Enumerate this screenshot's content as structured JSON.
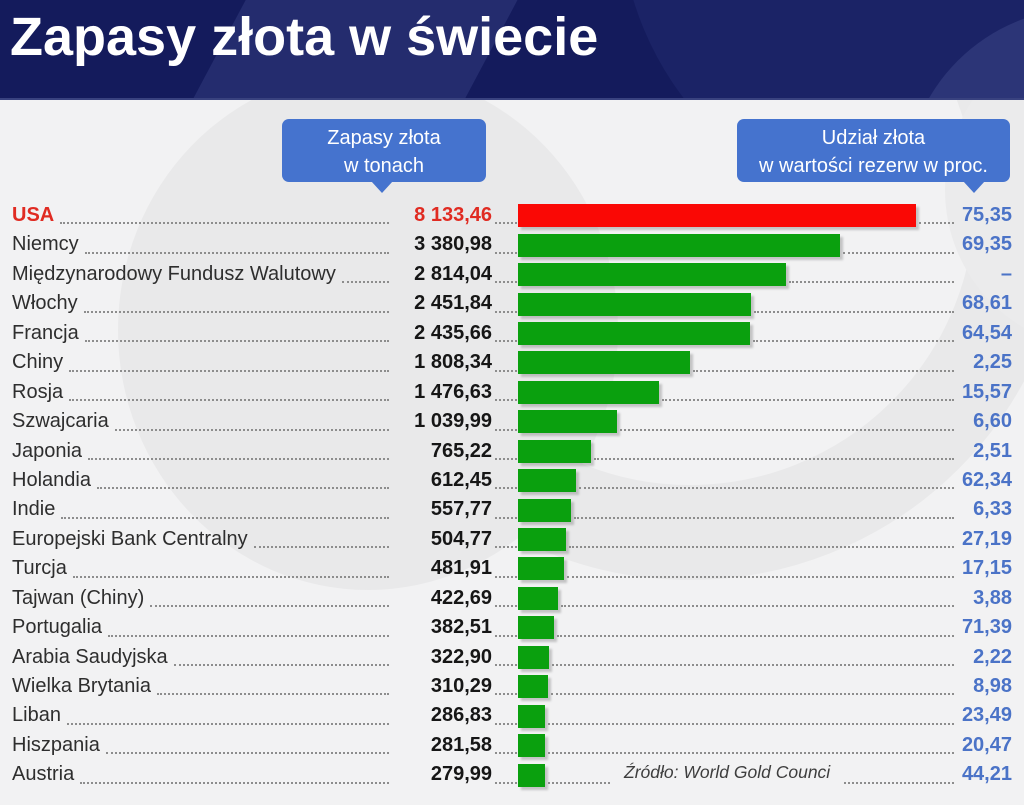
{
  "title": "Zapasy złota w świecie",
  "callouts": {
    "left_line1": "Zapasy złota",
    "left_line2": "w tonach",
    "right_line1": "Udział złota",
    "right_line2": "w wartości rezerw w proc."
  },
  "source": "Źródło: World Gold Counci",
  "colors": {
    "header_navy": "#141b5c",
    "body_bg": "#f2f2f3",
    "callout_blue": "#4573ce",
    "bar_green": "#0aa00e",
    "bar_red": "#fa0805",
    "highlight_red": "#e02b22",
    "share_blue": "#4b73c7"
  },
  "chart_data": {
    "type": "bar",
    "orientation": "horizontal",
    "title": "Zapasy złota w świecie",
    "value_columns": [
      {
        "key": "tons",
        "label": "Zapasy złota w tonach"
      },
      {
        "key": "share",
        "label": "Udział złota w wartości rezerw w proc."
      }
    ],
    "bar_series": "tons",
    "bar_axis_max_tons": 4180,
    "legend": "none",
    "grid": "off",
    "rows": [
      {
        "name": "USA",
        "tons": "8 133,46",
        "tons_value": 8133.46,
        "share": "75,35",
        "share_value": 75.35,
        "highlight": true
      },
      {
        "name": "Niemcy",
        "tons": "3 380,98",
        "tons_value": 3380.98,
        "share": "69,35",
        "share_value": 69.35,
        "highlight": false
      },
      {
        "name": "Międzynarodowy Fundusz Walutowy",
        "tons": "2 814,04",
        "tons_value": 2814.04,
        "share": "–",
        "share_value": null,
        "highlight": false
      },
      {
        "name": "Włochy",
        "tons": "2 451,84",
        "tons_value": 2451.84,
        "share": "68,61",
        "share_value": 68.61,
        "highlight": false
      },
      {
        "name": "Francja",
        "tons": "2 435,66",
        "tons_value": 2435.66,
        "share": "64,54",
        "share_value": 64.54,
        "highlight": false
      },
      {
        "name": "Chiny",
        "tons": "1 808,34",
        "tons_value": 1808.34,
        "share": "2,25",
        "share_value": 2.25,
        "highlight": false
      },
      {
        "name": "Rosja",
        "tons": "1 476,63",
        "tons_value": 1476.63,
        "share": "15,57",
        "share_value": 15.57,
        "highlight": false
      },
      {
        "name": "Szwajcaria",
        "tons": "1 039,99",
        "tons_value": 1039.99,
        "share": "6,60",
        "share_value": 6.6,
        "highlight": false
      },
      {
        "name": "Japonia",
        "tons": "765,22",
        "tons_value": 765.22,
        "share": "2,51",
        "share_value": 2.51,
        "highlight": false
      },
      {
        "name": "Holandia",
        "tons": "612,45",
        "tons_value": 612.45,
        "share": "62,34",
        "share_value": 62.34,
        "highlight": false
      },
      {
        "name": "Indie",
        "tons": "557,77",
        "tons_value": 557.77,
        "share": "6,33",
        "share_value": 6.33,
        "highlight": false
      },
      {
        "name": "Europejski Bank Centralny",
        "tons": "504,77",
        "tons_value": 504.77,
        "share": "27,19",
        "share_value": 27.19,
        "highlight": false
      },
      {
        "name": "Turcja",
        "tons": "481,91",
        "tons_value": 481.91,
        "share": "17,15",
        "share_value": 17.15,
        "highlight": false
      },
      {
        "name": "Tajwan (Chiny)",
        "tons": "422,69",
        "tons_value": 422.69,
        "share": "3,88",
        "share_value": 3.88,
        "highlight": false
      },
      {
        "name": "Portugalia",
        "tons": "382,51",
        "tons_value": 382.51,
        "share": "71,39",
        "share_value": 71.39,
        "highlight": false
      },
      {
        "name": "Arabia Saudyjska",
        "tons": "322,90",
        "tons_value": 322.9,
        "share": "2,22",
        "share_value": 2.22,
        "highlight": false
      },
      {
        "name": "Wielka Brytania",
        "tons": "310,29",
        "tons_value": 310.29,
        "share": "8,98",
        "share_value": 8.98,
        "highlight": false
      },
      {
        "name": "Liban",
        "tons": "286,83",
        "tons_value": 286.83,
        "share": "23,49",
        "share_value": 23.49,
        "highlight": false
      },
      {
        "name": "Hiszpania",
        "tons": "281,58",
        "tons_value": 281.58,
        "share": "20,47",
        "share_value": 20.47,
        "highlight": false
      },
      {
        "name": "Austria",
        "tons": "279,99",
        "tons_value": 279.99,
        "share": "44,21",
        "share_value": 44.21,
        "highlight": false
      }
    ]
  }
}
